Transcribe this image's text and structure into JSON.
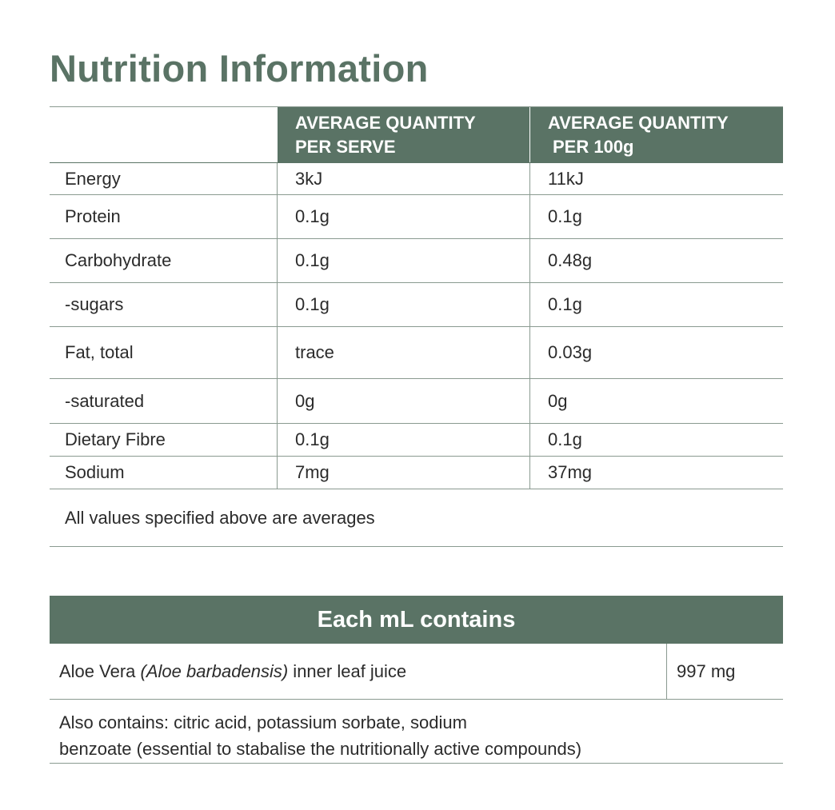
{
  "title": "Nutrition Information",
  "nutrition_table": {
    "header": {
      "col1": "",
      "col2_line1": "AVERAGE QUANTITY",
      "col2_line2": "PER SERVE",
      "col3_line1": "AVERAGE QUANTITY",
      "col3_line2": "PER 100g"
    },
    "rows": [
      {
        "label": "Energy",
        "per_serve": "3kJ",
        "per_100g": "11kJ"
      },
      {
        "label": "Protein",
        "per_serve": "0.1g",
        "per_100g": "0.1g"
      },
      {
        "label": "Carbohydrate",
        "per_serve": "0.1g",
        "per_100g": "0.48g"
      },
      {
        "label": "-sugars",
        "per_serve": "0.1g",
        "per_100g": "0.1g"
      },
      {
        "label": "Fat, total",
        "per_serve": "trace",
        "per_100g": "0.03g"
      },
      {
        "label": "-saturated",
        "per_serve": "0g",
        "per_100g": "0g"
      },
      {
        "label": "Dietary Fibre",
        "per_serve": "0.1g",
        "per_100g": "0.1g"
      },
      {
        "label": "Sodium",
        "per_serve": "7mg",
        "per_100g": "37mg"
      }
    ],
    "footnote": "All values specified above are averages"
  },
  "ingredients": {
    "header": "Each mL contains",
    "item_name_prefix": "Aloe Vera ",
    "item_name_italic": "(Aloe barbadensis)",
    "item_name_suffix": " inner leaf juice",
    "item_amount": "997 mg",
    "also_contains_line1": "Also contains: citric acid, potassium sorbate, sodium",
    "also_contains_line2": "benzoate (essential to stabalise the nutritionally active compounds)"
  },
  "colors": {
    "accent_green": "#5a7365",
    "rule_gray": "#8a9a90",
    "text": "#2b2b2b"
  }
}
